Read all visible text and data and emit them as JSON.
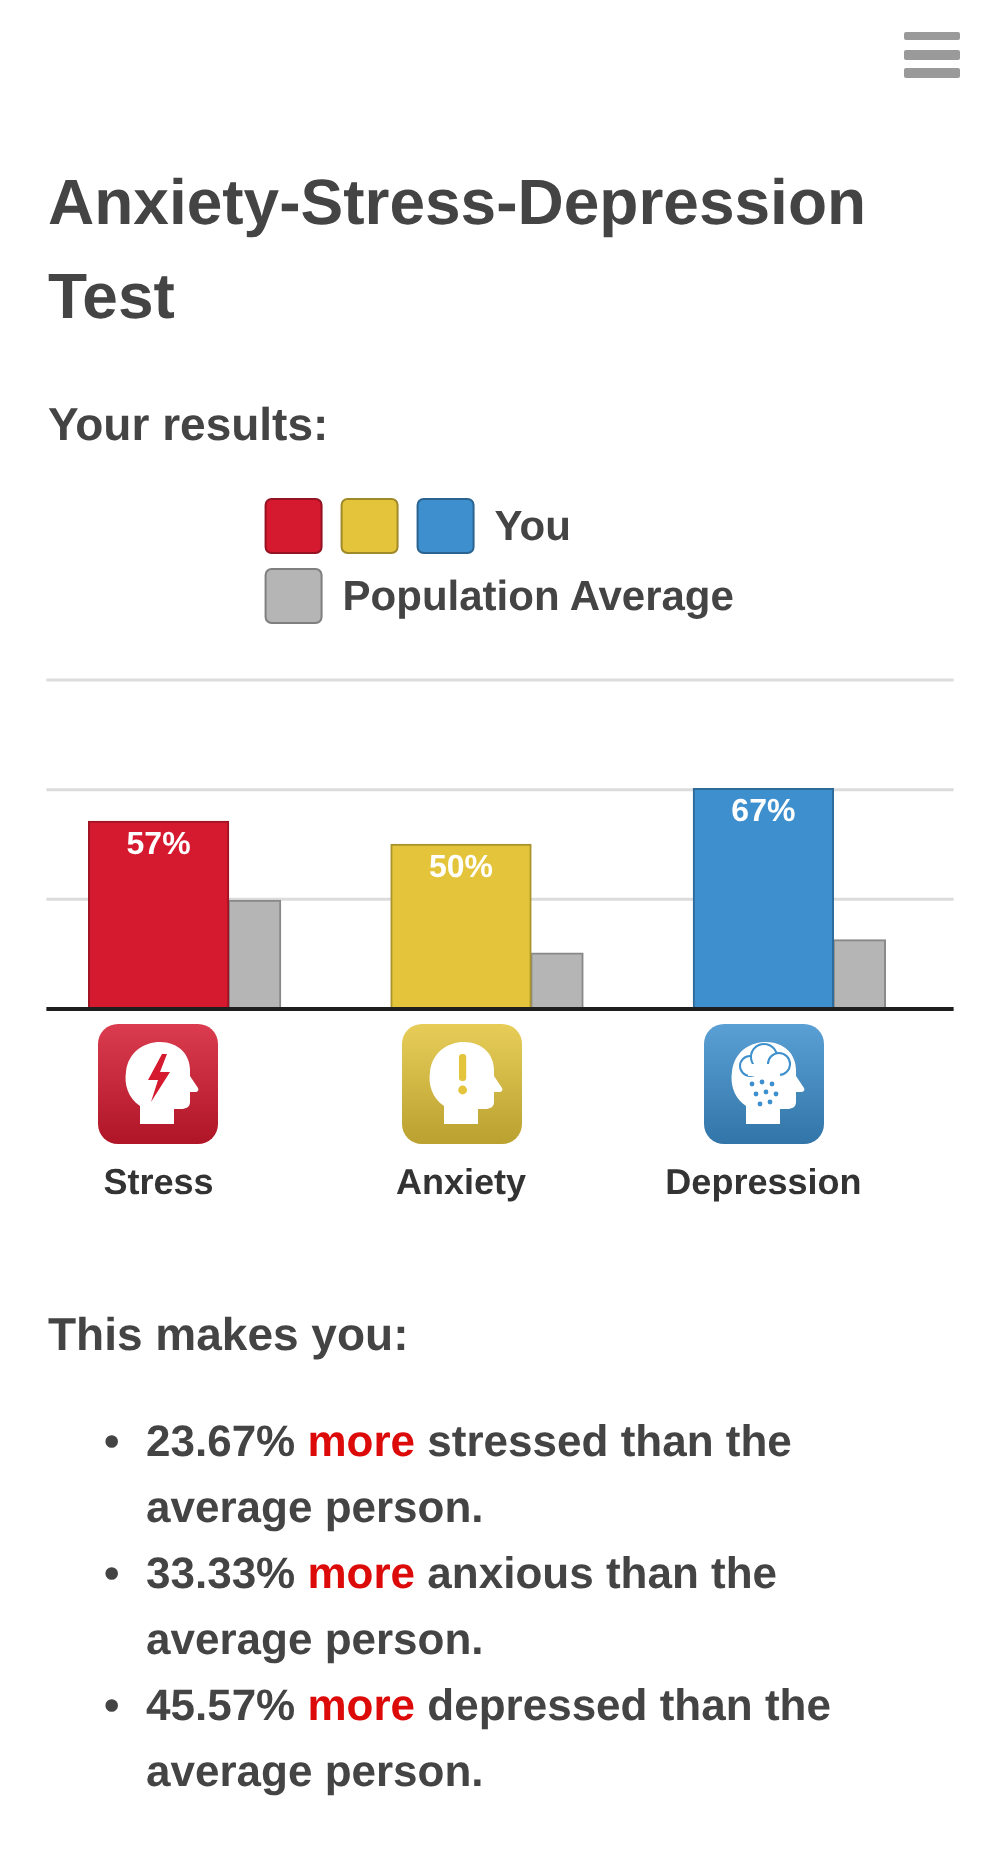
{
  "chart_data": {
    "type": "bar",
    "title": "Anxiety-Stress-Depression Test",
    "subtitle": "Your results:",
    "categories": [
      "Stress",
      "Anxiety",
      "Depression"
    ],
    "series": [
      {
        "name": "You",
        "colors": [
          "#d51a30",
          "#e3c43a",
          "#3d8fcd"
        ],
        "values": [
          57,
          50,
          67
        ],
        "value_labels": [
          "57%",
          "50%",
          "67%"
        ]
      },
      {
        "name": "Population Average",
        "color": "#b5b5b5",
        "values": [
          33,
          17,
          21
        ]
      }
    ],
    "ylim": [
      0,
      100
    ],
    "yticks": [
      {
        "value": 0,
        "label": null
      },
      {
        "value": 33.33,
        "label": null
      },
      {
        "value": 66.67,
        "label": null
      },
      {
        "value": 100,
        "label": null
      }
    ],
    "grid": "y",
    "legend": "top",
    "tick_labels": "x",
    "annotations": [
      "This makes you:",
      "• 23.67% more stressed than the average person.",
      "• 33.33% more anxious than the average person.",
      "• 45.57% more depressed than the average person."
    ]
  }
}
